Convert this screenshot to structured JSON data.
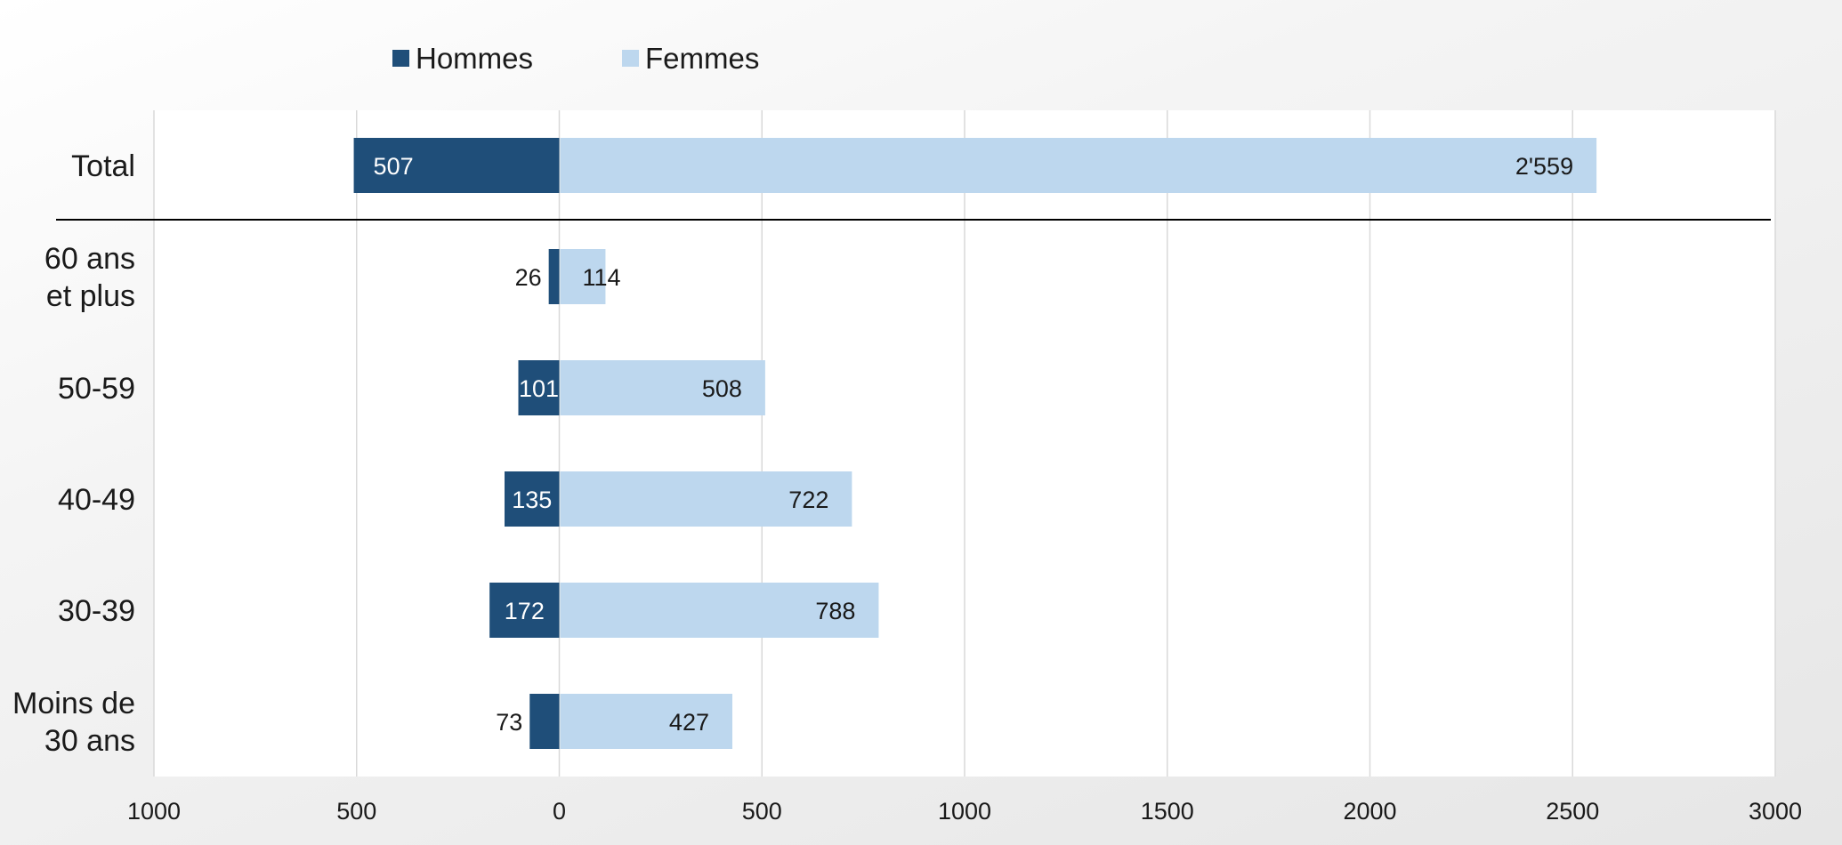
{
  "chart_data": {
    "type": "bar",
    "orientation": "horizontal",
    "stacking": "diverging",
    "categories": [
      [
        "Total"
      ],
      [
        "60 ans",
        "et plus"
      ],
      [
        "50-59"
      ],
      [
        "40-49"
      ],
      [
        "30-39"
      ],
      [
        "Moins de",
        "30 ans"
      ]
    ],
    "series": [
      {
        "name": "Hommes",
        "color": "#1f4e79",
        "direction": "negative",
        "values": [
          507,
          26,
          101,
          135,
          172,
          73
        ],
        "labels": [
          "507",
          "26",
          "101",
          "135",
          "172",
          "73"
        ],
        "label_color": "#ffffff"
      },
      {
        "name": "Femmes",
        "color": "#bdd7ee",
        "direction": "positive",
        "values": [
          2559,
          114,
          508,
          722,
          788,
          427
        ],
        "labels": [
          "2'559",
          "114",
          "508",
          "722",
          "788",
          "427"
        ],
        "label_color": "#1a1a1a"
      }
    ],
    "x_ticks": [
      "1000",
      "500",
      "0",
      "500",
      "1000",
      "1500",
      "2000",
      "2500",
      "3000"
    ],
    "xlim": [
      -1000,
      3000
    ],
    "grid": true,
    "legend_position": "top-left",
    "separator_after_category": "Total"
  }
}
